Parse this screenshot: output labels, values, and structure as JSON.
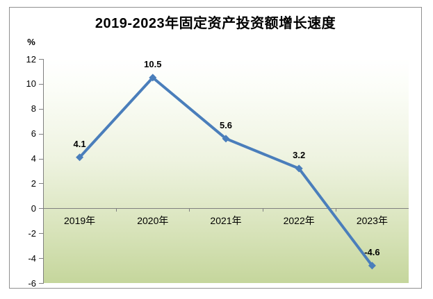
{
  "title": "2019-2023年固定资产投资额增长速度",
  "y_axis": {
    "unit_label": "%",
    "tick_labels": [
      "12",
      "10",
      "8",
      "6",
      "4",
      "2",
      "0",
      "-2",
      "-4",
      "-6"
    ],
    "tick_values": [
      12,
      10,
      8,
      6,
      4,
      2,
      0,
      -2,
      -4,
      -6
    ]
  },
  "chart_data": {
    "type": "line",
    "title": "2019-2023年固定资产投资额增长速度",
    "categories": [
      "2019年",
      "2020年",
      "2021年",
      "2022年",
      "2023年"
    ],
    "values": [
      4.1,
      10.5,
      5.6,
      3.2,
      -4.6
    ],
    "point_labels": [
      "4.1",
      "10.5",
      "5.6",
      "3.2",
      "-4.6"
    ],
    "xlabel": "",
    "ylabel": "%",
    "ylim": [
      -6,
      12
    ],
    "ytick_step": 2,
    "grid": false,
    "legend": "none",
    "marker": "diamond",
    "plot_background": "white-to-green-gradient"
  },
  "colors": {
    "line": "#4A7EBB",
    "marker": "#4A7EBB",
    "axis": "#7F7F7F",
    "frame_border": "#8F8F8F",
    "gradient_top": "#FFFFFF",
    "gradient_bottom": "#C5D69C",
    "text": "#000000"
  }
}
